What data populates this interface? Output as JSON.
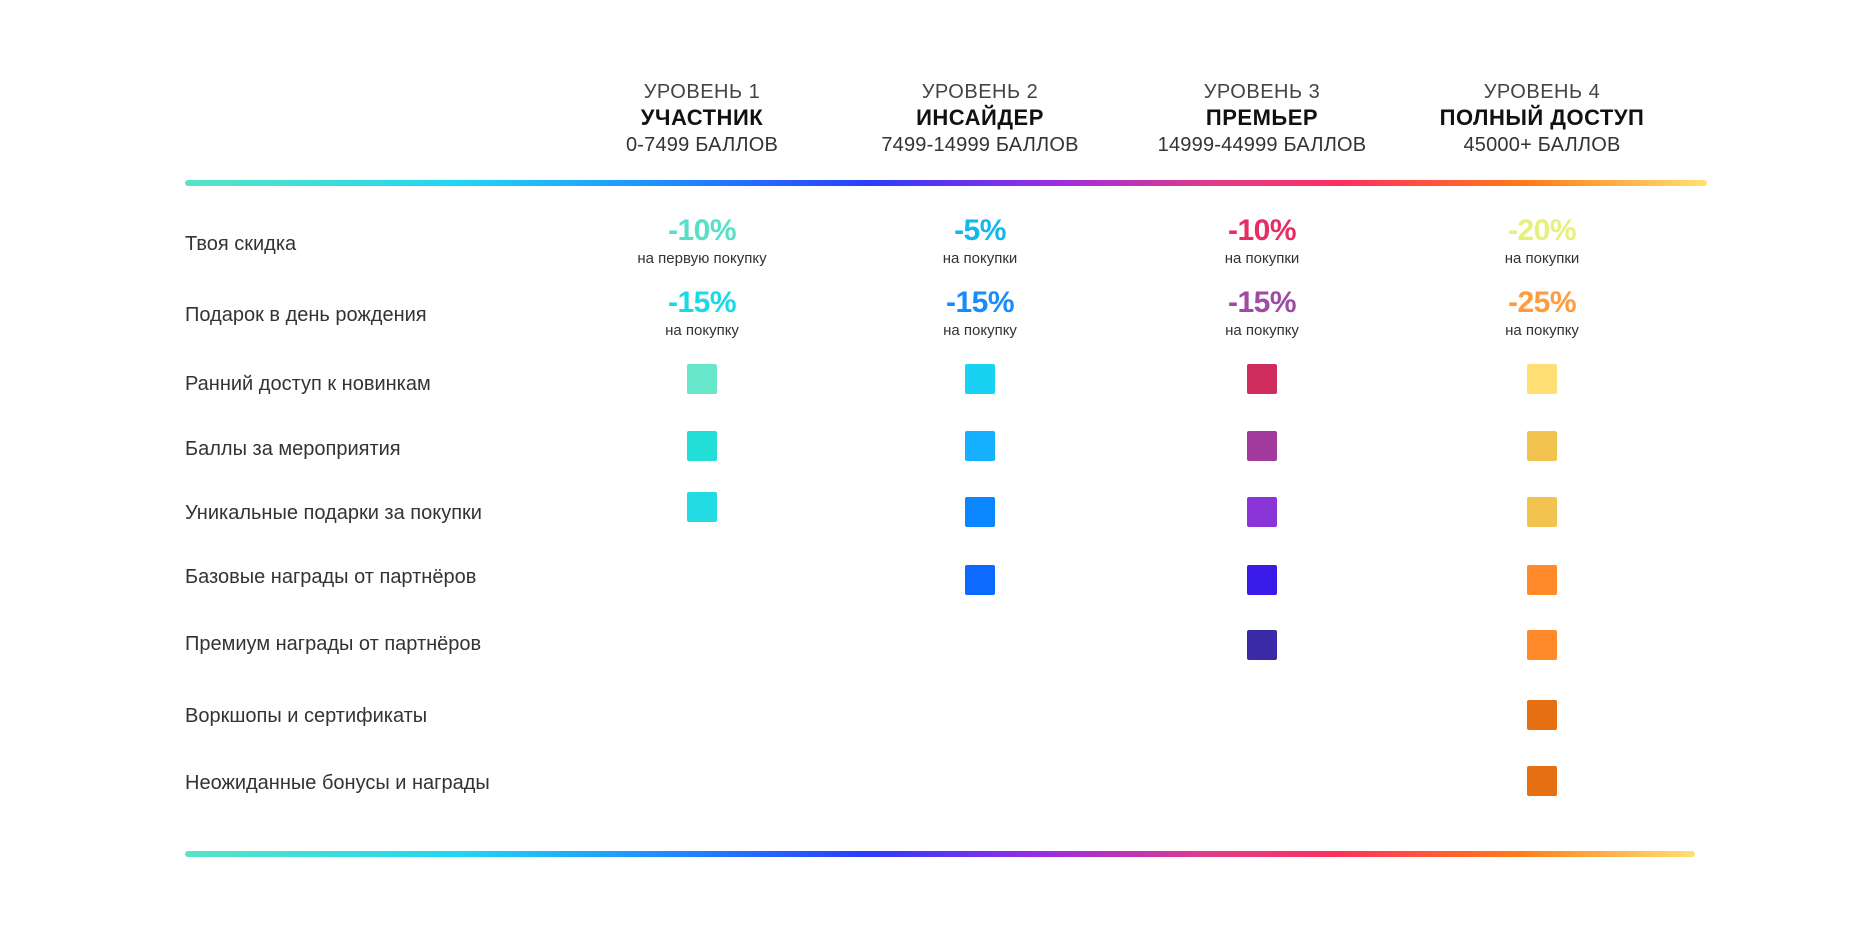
{
  "tiers": [
    {
      "level": "УРОВЕНЬ 1",
      "name": "УЧАСТНИК",
      "points": "0-7499 БАЛЛОВ"
    },
    {
      "level": "УРОВЕНЬ 2",
      "name": "ИНСАЙДЕР",
      "points": "7499-14999 БАЛЛОВ"
    },
    {
      "level": "УРОВЕНЬ 3",
      "name": "ПРЕМЬЕР",
      "points": "14999-44999 БАЛЛОВ"
    },
    {
      "level": "УРОВЕНЬ 4",
      "name": "ПОЛНЫЙ ДОСТУП",
      "points": "45000+ БАЛЛОВ"
    }
  ],
  "rows": {
    "discount": {
      "label": "Твоя скидка",
      "values": [
        {
          "value": "-10%",
          "note": "на первую покупку",
          "color": "#56e0c6"
        },
        {
          "value": "-5%",
          "note": "на покупки",
          "color": "#14b6ee"
        },
        {
          "value": "-10%",
          "note": "на покупки",
          "color": "#e62e63"
        },
        {
          "value": "-20%",
          "note": "на покупки",
          "color": "#e6f07a"
        }
      ]
    },
    "birthday": {
      "label": "Подарок в день рождения",
      "values": [
        {
          "value": "-15%",
          "note": "на покупку",
          "color": "#1bd8e6"
        },
        {
          "value": "-15%",
          "note": "на покупку",
          "color": "#188cff"
        },
        {
          "value": "-15%",
          "note": "на покупку",
          "color": "#a04aa3"
        },
        {
          "value": "-25%",
          "note": "на покупку",
          "color": "#ff9b3d"
        }
      ]
    },
    "early_access": {
      "label": "Ранний доступ к новинкам"
    },
    "event_points": {
      "label": "Баллы за мероприятия"
    },
    "unique_gifts": {
      "label": "Уникальные подарки за покупки"
    },
    "partner_basic": {
      "label": "Базовые награды от партнёров"
    },
    "partner_premium": {
      "label": "Премиум награды от партнёров"
    },
    "workshops": {
      "label": "Воркшопы и сертификаты"
    },
    "unexpected": {
      "label": "Неожиданные бонусы и награды"
    }
  },
  "colors": {
    "sq_t1_early": "#67e6c9",
    "sq_t2_early": "#18d2f3",
    "sq_t3_early": "#d02d5f",
    "sq_t4_early": "#ffde73",
    "sq_t1_event": "#23ddd7",
    "sq_t2_event": "#15b0ff",
    "sq_t3_event": "#a23a9e",
    "sq_t4_event": "#f2c34f",
    "sq_t1_unique": "#22dbe3",
    "sq_t2_unique": "#0c86ff",
    "sq_t3_unique": "#8a35d8",
    "sq_t4_unique": "#f2c34f",
    "sq_t2_partner_basic": "#0b6bff",
    "sq_t3_partner_basic": "#3b1be8",
    "sq_t4_partner_basic": "#ff8a2a",
    "sq_t3_partner_premium": "#3a2aa6",
    "sq_t4_partner_premium": "#ff8a2a",
    "sq_t4_workshops": "#e66f12",
    "sq_t4_unexpected": "#e66f12"
  }
}
